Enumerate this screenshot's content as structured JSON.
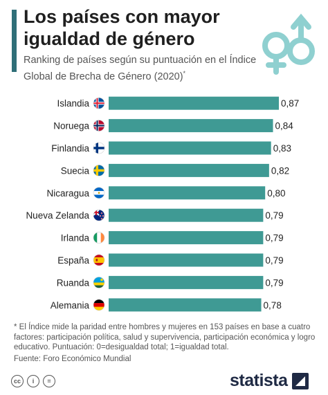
{
  "header": {
    "title": "Los países con mayor igualdad de género",
    "subtitle": "Ranking de países según su puntuación en el Índice Global de Brecha de Género (2020)",
    "subtitle_mark": "*"
  },
  "footer": {
    "footnote": "* El Índice mide la paridad entre hombres y mujeres en 153 países en base a cuatro factores: participación política, salud y supervivencia, participación económica y logro educativo. Puntuación:  0=desigualdad total; 1=igualdad total.",
    "source": "Fuente: Foro Económico Mundial",
    "brand": "statista",
    "license_icons": [
      "cc-icon",
      "by-icon",
      "nd-icon"
    ],
    "license_glyphs": [
      "cc",
      "i",
      "="
    ]
  },
  "colors": {
    "bar": "#3f9a94",
    "accent": "#2f6f78",
    "icon": "#8fd0d0",
    "brand": "#1f2a44"
  },
  "chart_data": {
    "type": "bar",
    "orientation": "horizontal",
    "categories": [
      "Islandia",
      "Noruega",
      "Finlandia",
      "Suecia",
      "Nicaragua",
      "Nueva Zelanda",
      "Irlanda",
      "España",
      "Ruanda",
      "Alemania"
    ],
    "values": [
      0.87,
      0.84,
      0.83,
      0.82,
      0.8,
      0.79,
      0.79,
      0.79,
      0.79,
      0.78
    ],
    "value_labels": [
      "0,87",
      "0,84",
      "0,83",
      "0,82",
      "0,80",
      "0,79",
      "0,79",
      "0,79",
      "0,79",
      "0,78"
    ],
    "flags": [
      "iceland-flag-icon",
      "norway-flag-icon",
      "finland-flag-icon",
      "sweden-flag-icon",
      "nicaragua-flag-icon",
      "new-zealand-flag-icon",
      "ireland-flag-icon",
      "spain-flag-icon",
      "rwanda-flag-icon",
      "germany-flag-icon"
    ],
    "xlim": [
      0,
      0.87
    ],
    "grid": false,
    "legend": "none"
  }
}
